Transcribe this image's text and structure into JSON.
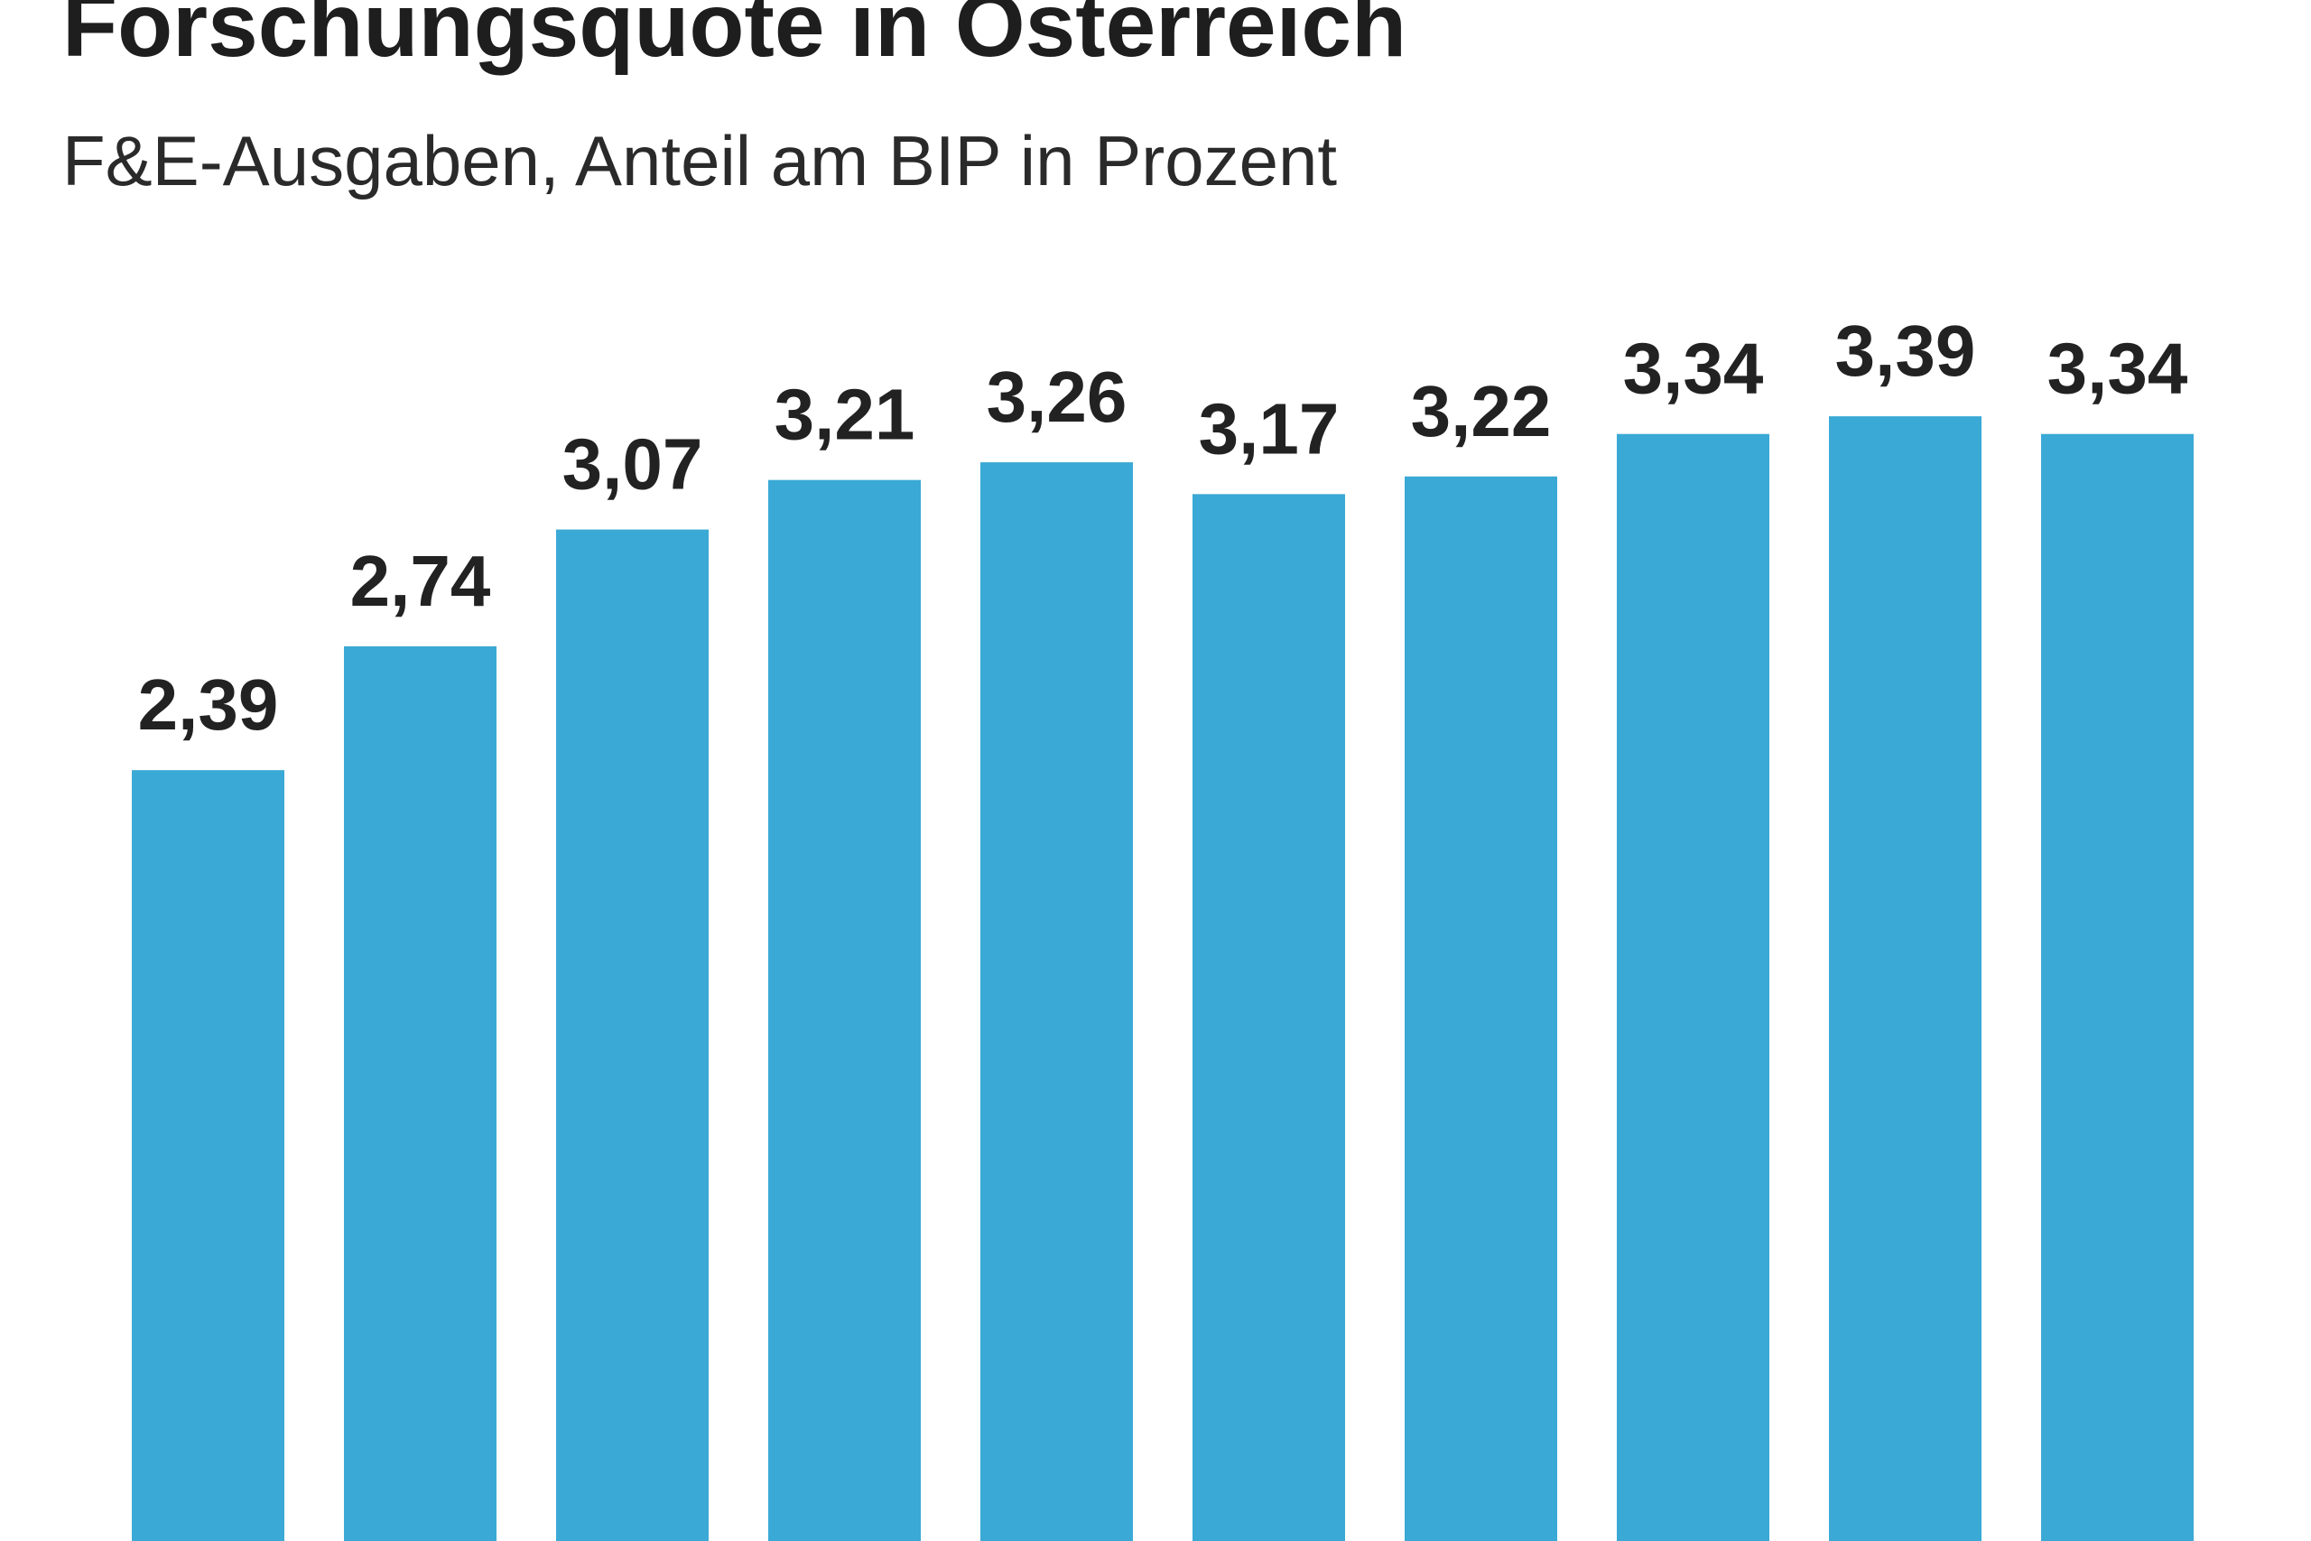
{
  "chart_data": {
    "type": "bar",
    "title": "Forschungsquote in Österreich",
    "subtitle": "F&E-Ausgaben, Anteil am BIP in Prozent",
    "categories": [
      null,
      null,
      null,
      null,
      null,
      null,
      null,
      null,
      null,
      null
    ],
    "values": [
      2.39,
      2.74,
      3.07,
      3.21,
      3.26,
      3.17,
      3.22,
      3.34,
      3.39,
      3.34
    ],
    "value_labels": [
      "2,39",
      "2,74",
      "3,07",
      "3,21",
      "3,26",
      "3,17",
      "3,22",
      "3,34",
      "3,39",
      "3,34"
    ],
    "color": "#3aa9d5"
  }
}
